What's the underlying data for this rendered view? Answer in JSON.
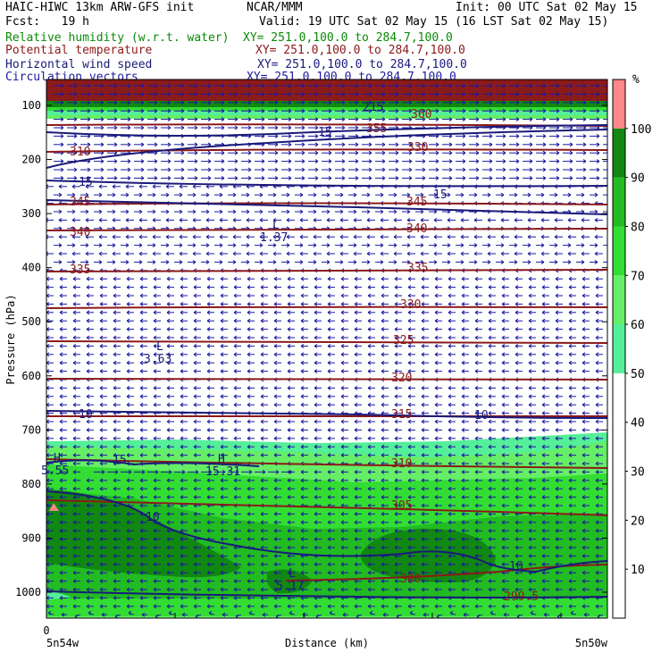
{
  "header": {
    "model": "HAIC-HIWC 13km ARW-GFS init",
    "org": "NCAR/MMM",
    "init": "Init: 00 UTC Sat 02 May 15",
    "fcst": "Fcst:   19 h",
    "valid": "Valid: 19 UTC Sat 02 May 15 (16 LST Sat 02 May 15)"
  },
  "fields": [
    {
      "name": "Relative humidity (w.r.t. water)",
      "xy": "XY= 251.0,100.0 to 284.7,100.0",
      "color": "#0a8a0a"
    },
    {
      "name": "Potential temperature",
      "xy": "XY= 251.0,100.0 to 284.7,100.0",
      "color": "#8b1a1a"
    },
    {
      "name": "Horizontal wind speed",
      "xy": "XY= 251.0,100.0 to 284.7,100.0",
      "color": "#1a1a7a"
    },
    {
      "name": "Circulation vectors",
      "xy": "XY= 251.0,100.0 to 284.7,100.0",
      "color": "#1a1aa0"
    }
  ],
  "chart_data": {
    "type": "cross-section",
    "ylabel": "Pressure (hPa)",
    "xlabel": "Distance (km)",
    "yticks": [
      100,
      200,
      300,
      400,
      500,
      600,
      700,
      800,
      900,
      1000
    ],
    "ylim": [
      1000,
      70
    ],
    "x_start_label": "0",
    "x_left_label": "5n54w",
    "x_right_label": "5n50w",
    "colorbar": {
      "unit": "%",
      "levels": [
        10,
        20,
        30,
        40,
        50,
        60,
        70,
        80,
        90,
        100
      ],
      "colors": [
        "#ffffff",
        "#ffffff",
        "#ffffff",
        "#ffffff",
        "#ffffff",
        "#55ee99",
        "#66ee66",
        "#33dd33",
        "#22bb22",
        "#118811",
        "#ff8888"
      ]
    },
    "theta_contours": [
      {
        "label": "330",
        "p": 165
      },
      {
        "label": "345",
        "p": 228
      },
      {
        "label": "340",
        "p": 258
      },
      {
        "label": "335",
        "p": 302
      },
      {
        "label": "330",
        "p": 343
      },
      {
        "label": "325",
        "p": 382
      },
      {
        "label": "320",
        "p": 424
      },
      {
        "label": "315",
        "p": 465
      },
      {
        "label": "310",
        "p": 520
      },
      {
        "label": "305",
        "p": 568
      },
      {
        "label": "300",
        "p": 650
      },
      {
        "label": "299.5",
        "p": 668
      },
      {
        "label": "350",
        "p": 143
      },
      {
        "label": "355",
        "p": 140
      },
      {
        "label": "360",
        "p": 128
      }
    ],
    "wind_labels": [
      "15",
      "15",
      "15",
      "15",
      "10",
      "15",
      "10",
      "15",
      "10",
      "10"
    ],
    "extrema": [
      {
        "type": "L",
        "value": "1.37"
      },
      {
        "type": "L",
        "value": "3.63"
      },
      {
        "type": "H",
        "value": "5.55"
      },
      {
        "type": "H",
        "value": "15.31"
      },
      {
        "type": "L",
        "value": "5.17"
      }
    ],
    "theta_labels": [
      {
        "text": "310",
        "x": 78,
        "y": 172
      },
      {
        "text": "345",
        "x": 78,
        "y": 228
      },
      {
        "text": "340",
        "x": 78,
        "y": 262
      },
      {
        "text": "335",
        "x": 78,
        "y": 304
      },
      {
        "text": "330",
        "x": 456,
        "y": 167
      },
      {
        "text": "345",
        "x": 455,
        "y": 228
      },
      {
        "text": "340",
        "x": 455,
        "y": 258
      },
      {
        "text": "335",
        "x": 456,
        "y": 302
      },
      {
        "text": "330",
        "x": 448,
        "y": 343
      },
      {
        "text": "325",
        "x": 440,
        "y": 383
      },
      {
        "text": "320",
        "x": 438,
        "y": 425
      },
      {
        "text": "315",
        "x": 438,
        "y": 466
      },
      {
        "text": "310",
        "x": 438,
        "y": 521
      },
      {
        "text": "305",
        "x": 438,
        "y": 568
      },
      {
        "text": "300",
        "x": 448,
        "y": 650
      },
      {
        "text": "299.5",
        "x": 564,
        "y": 670
      },
      {
        "text": "355",
        "x": 410,
        "y": 146
      },
      {
        "text": "360",
        "x": 460,
        "y": 130
      }
    ],
    "wind_text": [
      {
        "text": "15",
        "x": 356,
        "y": 150
      },
      {
        "text": "15",
        "x": 88,
        "y": 206
      },
      {
        "text": "15",
        "x": 485,
        "y": 220
      },
      {
        "text": "10",
        "x": 88,
        "y": 466
      },
      {
        "text": "10",
        "x": 531,
        "y": 467
      },
      {
        "text": "15",
        "x": 126,
        "y": 517
      },
      {
        "text": "10",
        "x": 163,
        "y": 581
      },
      {
        "text": "10",
        "x": 570,
        "y": 636
      },
      {
        "text": "215",
        "x": 406,
        "y": 122
      }
    ],
    "extrema_marks": [
      {
        "type": "L",
        "value": "1.37",
        "x": 305,
        "y": 256
      },
      {
        "type": "L",
        "value": "3.63",
        "x": 175,
        "y": 392
      },
      {
        "type": "H",
        "value": "5.55",
        "x": 60,
        "y": 517
      },
      {
        "type": "H",
        "value": "15.31",
        "x": 244,
        "y": 518
      },
      {
        "type": "L",
        "value": "5.17",
        "x": 323,
        "y": 646
      }
    ]
  }
}
